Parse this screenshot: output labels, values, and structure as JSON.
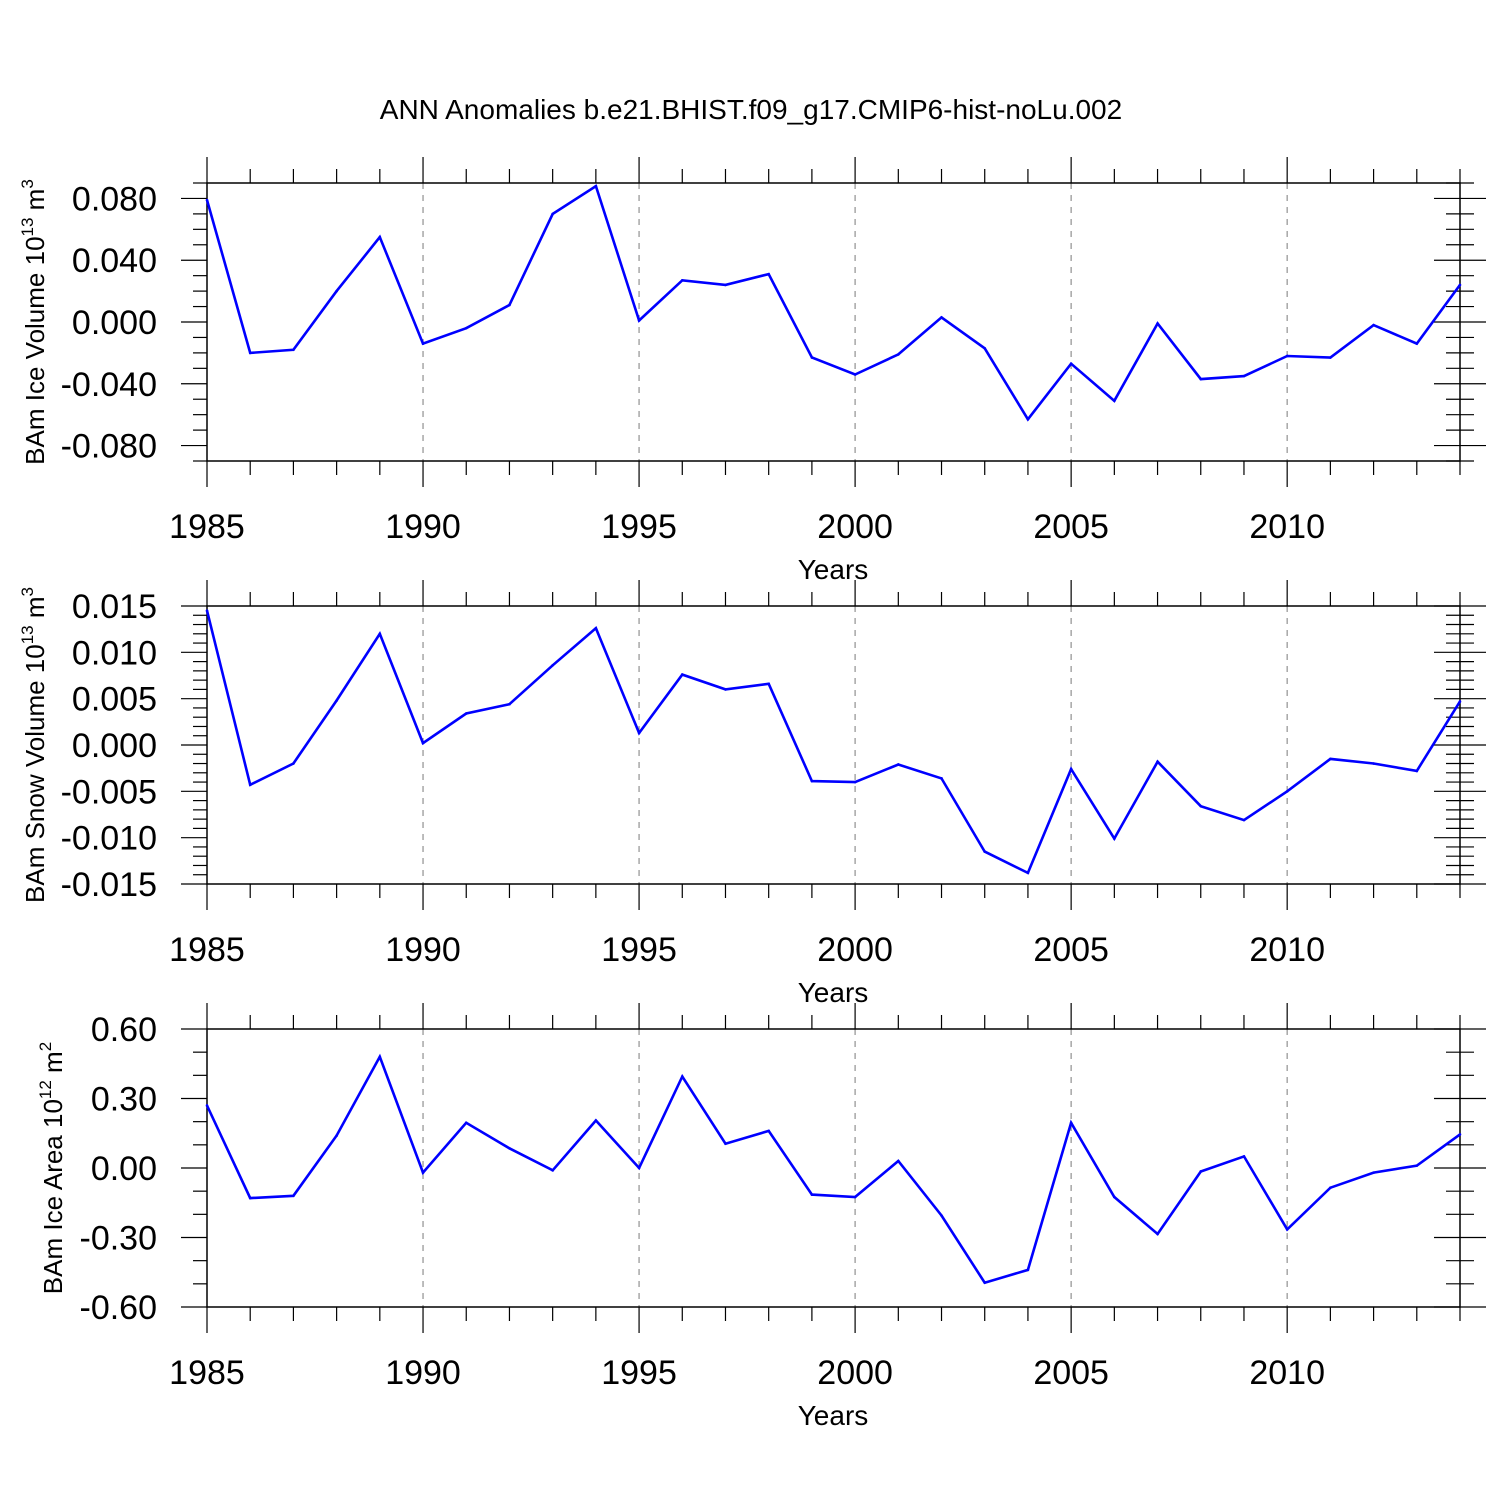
{
  "figure": {
    "title": "ANN Anomalies b.e21.BHIST.f09_g17.CMIP6-hist-noLu.002",
    "line_color": "#0000ff",
    "grid_color": "#999999"
  },
  "chart_data": [
    {
      "type": "line",
      "title": "",
      "ylabel": "BAm Ice Volume 10",
      "ylabel_exp": "13",
      "ylabel_unit": " m",
      "ylabel_unit_exp": "3",
      "xlabel": "Years",
      "xlim": [
        1985,
        2014
      ],
      "ylim": [
        -0.09,
        0.09
      ],
      "yticks": [
        0.08,
        0.04,
        0.0,
        -0.04,
        -0.08
      ],
      "ytick_labels": [
        "0.080",
        "0.040",
        "0.000",
        "-0.040",
        "-0.080"
      ],
      "yminor": [
        -0.09,
        -0.07,
        -0.06,
        -0.05,
        -0.03,
        -0.02,
        -0.01,
        0.01,
        0.02,
        0.03,
        0.05,
        0.06,
        0.07,
        0.09
      ],
      "xticks": [
        1985,
        1990,
        1995,
        2000,
        2005,
        2010
      ],
      "xtick_labels": [
        "1985",
        "1990",
        "1995",
        "2000",
        "2005",
        "2010"
      ],
      "grid_x": [
        1990,
        1995,
        2000,
        2005,
        2010
      ],
      "x": [
        1985,
        1986,
        1987,
        1988,
        1989,
        1990,
        1991,
        1992,
        1993,
        1994,
        1995,
        1996,
        1997,
        1998,
        1999,
        2000,
        2001,
        2002,
        2003,
        2004,
        2005,
        2006,
        2007,
        2008,
        2009,
        2010,
        2011,
        2012,
        2013,
        2014
      ],
      "values": [
        0.079,
        -0.02,
        -0.018,
        0.02,
        0.055,
        -0.014,
        -0.004,
        0.011,
        0.07,
        0.088,
        0.001,
        0.027,
        0.024,
        0.031,
        -0.023,
        -0.034,
        -0.021,
        0.003,
        -0.017,
        -0.063,
        -0.027,
        -0.051,
        -0.001,
        -0.037,
        -0.035,
        -0.022,
        -0.023,
        -0.002,
        -0.014,
        0.024
      ]
    },
    {
      "type": "line",
      "title": "",
      "ylabel": "BAm Snow Volume 10",
      "ylabel_exp": "13",
      "ylabel_unit": " m",
      "ylabel_unit_exp": "3",
      "xlabel": "Years",
      "xlim": [
        1985,
        2014
      ],
      "ylim": [
        -0.015,
        0.015
      ],
      "yticks": [
        0.015,
        0.01,
        0.005,
        0.0,
        -0.005,
        -0.01,
        -0.015
      ],
      "ytick_labels": [
        "0.015",
        "0.010",
        "0.005",
        "0.000",
        "-0.005",
        "-0.010",
        "-0.015"
      ],
      "yminor": [
        -0.014,
        -0.013,
        -0.012,
        -0.011,
        -0.009,
        -0.008,
        -0.007,
        -0.006,
        -0.004,
        -0.003,
        -0.002,
        -0.001,
        0.001,
        0.002,
        0.003,
        0.004,
        0.006,
        0.007,
        0.008,
        0.009,
        0.011,
        0.012,
        0.013,
        0.014
      ],
      "xticks": [
        1985,
        1990,
        1995,
        2000,
        2005,
        2010
      ],
      "xtick_labels": [
        "1985",
        "1990",
        "1995",
        "2000",
        "2005",
        "2010"
      ],
      "grid_x": [
        1990,
        1995,
        2000,
        2005,
        2010
      ],
      "x": [
        1985,
        1986,
        1987,
        1988,
        1989,
        1990,
        1991,
        1992,
        1993,
        1994,
        1995,
        1996,
        1997,
        1998,
        1999,
        2000,
        2001,
        2002,
        2003,
        2004,
        2005,
        2006,
        2007,
        2008,
        2009,
        2010,
        2011,
        2012,
        2013,
        2014
      ],
      "values": [
        0.0145,
        -0.0043,
        -0.002,
        0.0048,
        0.012,
        0.0002,
        0.0034,
        0.0044,
        0.0086,
        0.0126,
        0.0013,
        0.0076,
        0.006,
        0.0066,
        -0.0039,
        -0.004,
        -0.0021,
        -0.0036,
        -0.0115,
        -0.0138,
        -0.0026,
        -0.0101,
        -0.0018,
        -0.0066,
        -0.0081,
        -0.005,
        -0.0015,
        -0.002,
        -0.0028,
        0.0047
      ]
    },
    {
      "type": "line",
      "title": "",
      "ylabel": "BAm Ice Area 10",
      "ylabel_exp": "12",
      "ylabel_unit": " m",
      "ylabel_unit_exp": "2",
      "xlabel": "Years",
      "xlim": [
        1985,
        2014
      ],
      "ylim": [
        -0.6,
        0.6
      ],
      "yticks": [
        0.6,
        0.3,
        0.0,
        -0.3,
        -0.6
      ],
      "ytick_labels": [
        "0.60",
        "0.30",
        "0.00",
        "-0.30",
        "-0.60"
      ],
      "yminor": [
        -0.5,
        -0.4,
        -0.2,
        -0.1,
        0.1,
        0.2,
        0.4,
        0.5
      ],
      "xticks": [
        1985,
        1990,
        1995,
        2000,
        2005,
        2010
      ],
      "xtick_labels": [
        "1985",
        "1990",
        "1995",
        "2000",
        "2005",
        "2010"
      ],
      "grid_x": [
        1990,
        1995,
        2000,
        2005,
        2010
      ],
      "x": [
        1985,
        1986,
        1987,
        1988,
        1989,
        1990,
        1991,
        1992,
        1993,
        1994,
        1995,
        1996,
        1997,
        1998,
        1999,
        2000,
        2001,
        2002,
        2003,
        2004,
        2005,
        2006,
        2007,
        2008,
        2009,
        2010,
        2011,
        2012,
        2013,
        2014
      ],
      "values": [
        0.27,
        -0.13,
        -0.12,
        0.14,
        0.48,
        -0.02,
        0.195,
        0.085,
        -0.01,
        0.205,
        0.0,
        0.395,
        0.105,
        0.16,
        -0.115,
        -0.125,
        0.03,
        -0.205,
        -0.495,
        -0.44,
        0.195,
        -0.125,
        -0.285,
        -0.015,
        0.05,
        -0.265,
        -0.085,
        -0.02,
        0.01,
        0.145
      ]
    }
  ]
}
